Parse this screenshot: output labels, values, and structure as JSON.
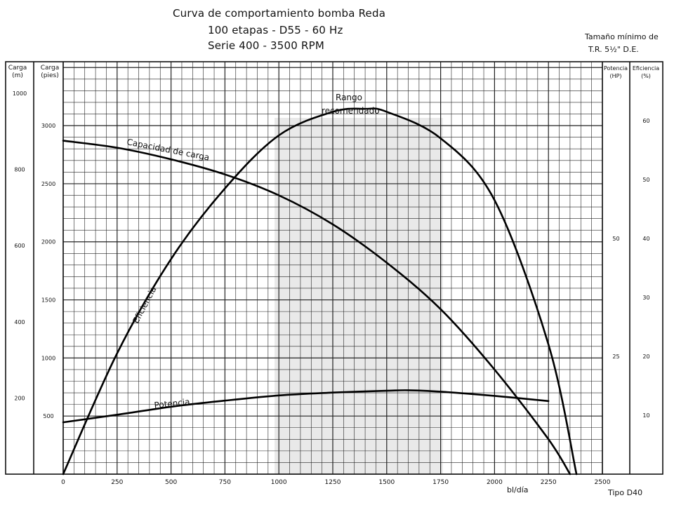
{
  "titles": {
    "line1": "Curva de comportamiento bomba Reda",
    "line2": "100 etapas - D55 - 60 Hz",
    "line3": "Serie 400 - 3500 RPM"
  },
  "note": {
    "line1": "Tamaño mínimo de",
    "line2": "T.R. 5½\" D.E."
  },
  "footer": "Tipo D40",
  "chart_data": {
    "type": "line",
    "title": "Curva de comportamiento bomba Reda",
    "xlabel": "bl/día",
    "xlim": [
      0,
      2500
    ],
    "x_ticks": [
      0,
      250,
      500,
      750,
      1000,
      1250,
      1500,
      1750,
      2000,
      2250,
      2500
    ],
    "axes": {
      "carga_m": {
        "label": "Carga (m)",
        "range": [
          0,
          1083
        ],
        "ticks": [
          200,
          400,
          600,
          800,
          1000
        ]
      },
      "carga_pies": {
        "label": "Carga (pies)",
        "range": [
          0,
          3550
        ],
        "ticks": [
          500,
          1000,
          1500,
          2000,
          2500,
          3000
        ]
      },
      "potencia_hp": {
        "label": "Potencia (HP)",
        "range": [
          0,
          87.5
        ],
        "ticks": [
          25,
          50
        ]
      },
      "eficiencia_pct": {
        "label": "Eficiencia (%)",
        "range": [
          0,
          70
        ],
        "ticks": [
          10,
          20,
          30,
          40,
          50,
          60
        ]
      }
    },
    "series": [
      {
        "name": "Capacidad de carga",
        "axis": "carga_pies",
        "x": [
          0,
          250,
          500,
          750,
          1000,
          1250,
          1500,
          1750,
          2000,
          2250,
          2350
        ],
        "y": [
          2870,
          2810,
          2710,
          2580,
          2400,
          2150,
          1820,
          1420,
          900,
          300,
          0
        ]
      },
      {
        "name": "Eficiencia",
        "axis": "eficiencia_pct",
        "x": [
          0,
          250,
          500,
          750,
          1000,
          1250,
          1400,
          1500,
          1750,
          2000,
          2250,
          2380
        ],
        "y": [
          0,
          20.5,
          36.5,
          48.5,
          57.5,
          61.5,
          62,
          61.5,
          57,
          46.5,
          22,
          0
        ]
      },
      {
        "name": "Potencia",
        "axis": "potencia_hp",
        "x": [
          0,
          250,
          500,
          750,
          1000,
          1250,
          1500,
          1600,
          1750,
          2000,
          2250
        ],
        "y": [
          11,
          12.6,
          14.3,
          15.6,
          16.7,
          17.3,
          17.7,
          17.8,
          17.5,
          16.6,
          15.5
        ]
      }
    ],
    "annotations": [
      "Rango",
      "recomendado"
    ]
  },
  "headers": {
    "carga_m": {
      "line1": "Carga",
      "line2": "(m)"
    },
    "carga_pies": {
      "line1": "Carga",
      "line2": "(pies)"
    },
    "potencia": {
      "line1": "Potencia",
      "line2": "(HP)"
    },
    "eficiencia": {
      "line1": "Eficiencia",
      "line2": "(%)"
    }
  }
}
